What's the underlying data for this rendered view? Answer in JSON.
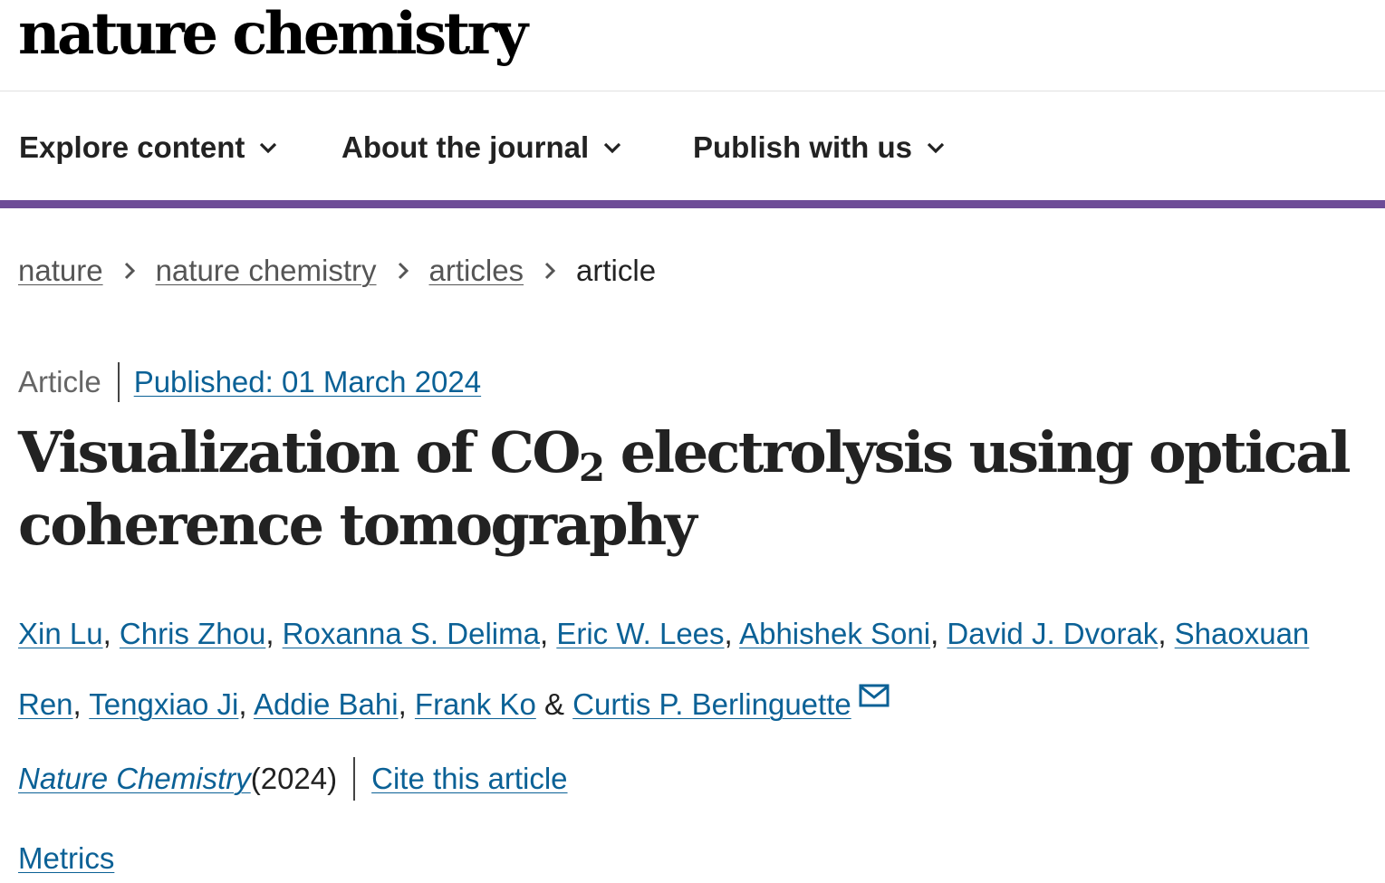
{
  "logo": {
    "text": "nature chemistry"
  },
  "nav": {
    "items": [
      {
        "label": "Explore content"
      },
      {
        "label": "About the journal"
      },
      {
        "label": "Publish with us"
      }
    ]
  },
  "breadcrumb": {
    "items": [
      "nature",
      "nature chemistry",
      "articles"
    ],
    "current": "article"
  },
  "article": {
    "type": "Article",
    "published": "Published: 01 March 2024",
    "title_part1": "Visualization of CO",
    "title_sub": "2",
    "title_part2": " electrolysis using optical coherence tomography",
    "authors": [
      "Xin Lu",
      "Chris Zhou",
      "Roxanna S. Delima",
      "Eric W. Lees",
      "Abhishek Soni",
      "David J. Dvorak",
      "Shaoxuan Ren",
      "Tengxiao Ji",
      "Addie Bahi",
      "Frank Ko",
      "Curtis P. Berlinguette"
    ],
    "author_sep": ", ",
    "author_and": " & ",
    "journal_name": "Nature Chemistry",
    "journal_year": " (2024)",
    "cite_label": "Cite this article",
    "metrics_label": "Metrics"
  },
  "icons": {
    "nav_chevron": "chevron-down-icon",
    "breadcrumb_sep": "chevron-right-icon",
    "corresponding_author": "envelope-icon"
  },
  "colors": {
    "nav_border": "#6e4c97",
    "link": "#0b6196"
  }
}
